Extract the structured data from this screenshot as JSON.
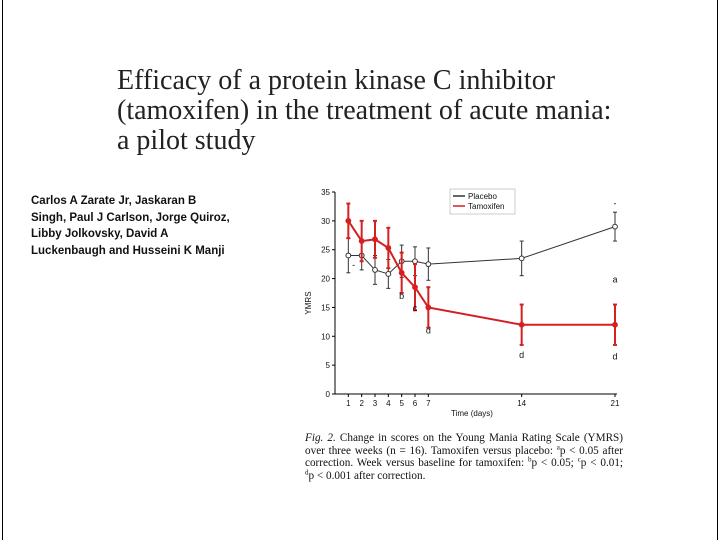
{
  "title": {
    "lines": [
      "Efficacy of a protein kinase C inhibitor",
      "(tamoxifen) in the treatment of acute mania:",
      "a pilot study"
    ]
  },
  "authors": {
    "lines": [
      "Carlos A Zarate Jr, Jaskaran B",
      "Singh, Paul J Carlson, Jorge Quiroz,",
      "Libby Jolkovsky, David A",
      "Luckenbaugh and Husseini K Manji"
    ]
  },
  "caption": {
    "fig_label": "Fig. 2.",
    "sentence1": "Change in scores on the Young Mania Rating Scale (YMRS) over three weeks (n = 16). Tamoxifen versus placebo:",
    "sig_a_sup": "a",
    "sig_a_text": "p < 0.05 after correction. Week versus baseline for tamoxifen:",
    "sig_b_sup": "b",
    "sig_b_text": "p < 0.05;",
    "sig_c_sup": "c",
    "sig_c_text": "p < 0.01;",
    "sig_d_sup": "d",
    "sig_d_text": "p < 0.001 after correction."
  },
  "chart_data": {
    "type": "line",
    "xlabel": "Time (days)",
    "ylabel": "YMRS",
    "xlim": [
      0,
      21
    ],
    "ylim": [
      0,
      35
    ],
    "x_ticks": [
      1,
      2,
      3,
      4,
      5,
      6,
      7,
      14,
      21
    ],
    "y_ticks": [
      0,
      5,
      10,
      15,
      20,
      25,
      30,
      35
    ],
    "legend": [
      "Placebo",
      "Tamoxifen"
    ],
    "legend_position": "top-right",
    "colors": {
      "placebo": "#333333",
      "tamoxifen": "#d42020"
    },
    "series": [
      {
        "name": "Placebo",
        "x": [
          1,
          2,
          3,
          4,
          5,
          6,
          7,
          14,
          21
        ],
        "y": [
          24,
          24,
          21.5,
          20.8,
          23,
          23,
          22.5,
          23.5,
          29
        ],
        "err": [
          3,
          2.5,
          2.5,
          2.5,
          2.8,
          2.5,
          2.8,
          3,
          2.5
        ]
      },
      {
        "name": "Tamoxifen",
        "x": [
          1,
          2,
          3,
          4,
          5,
          6,
          7,
          14,
          21
        ],
        "y": [
          30,
          26.5,
          26.8,
          25.3,
          21,
          18.5,
          15,
          12,
          12
        ],
        "err": [
          3,
          3.5,
          3.2,
          3.5,
          3.5,
          4,
          3.5,
          3.5,
          3.5
        ]
      }
    ],
    "annotations": [
      {
        "text": "-",
        "x": 1.4,
        "y": 21.8
      },
      {
        "text": "b",
        "x": 5,
        "y": 16.5
      },
      {
        "text": "c",
        "x": 6,
        "y": 14.4
      },
      {
        "text": "d",
        "x": 7,
        "y": 10.5
      },
      {
        "text": "d",
        "x": 14,
        "y": 6.2
      },
      {
        "text": "d",
        "x": 21,
        "y": 6.0
      },
      {
        "text": "a",
        "x": 21,
        "y": 19.3
      },
      {
        "text": "-",
        "x": 21,
        "y": 32.5
      }
    ]
  }
}
